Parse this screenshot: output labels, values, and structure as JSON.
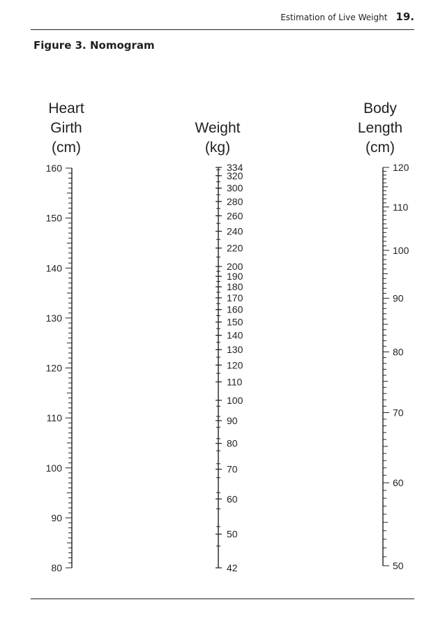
{
  "header": {
    "running_title": "Estimation of Live Weight",
    "page_number": "19."
  },
  "figure": {
    "caption": "Figure 3. Nomogram"
  },
  "chart_data": {
    "type": "nomogram",
    "scales": [
      {
        "key": "heart_girth",
        "title": [
          "Heart",
          "Girth",
          "(cm)"
        ],
        "min": 80,
        "max": 160,
        "labels": [
          160,
          150,
          140,
          130,
          120,
          110,
          100,
          90,
          80
        ],
        "minor_step": 1
      },
      {
        "key": "weight",
        "title": [
          "Weight",
          "(kg)"
        ],
        "min": 42,
        "max": 334,
        "labels": [
          334,
          320,
          300,
          280,
          260,
          240,
          220,
          200,
          190,
          180,
          170,
          160,
          150,
          140,
          130,
          120,
          110,
          100,
          90,
          80,
          70,
          60,
          50,
          42
        ]
      },
      {
        "key": "body_length",
        "title": [
          "Body",
          "Length",
          "(cm)"
        ],
        "min": 50,
        "max": 120,
        "labels": [
          120,
          110,
          100,
          90,
          80,
          70,
          60,
          50
        ],
        "minor_step": 1
      }
    ]
  }
}
